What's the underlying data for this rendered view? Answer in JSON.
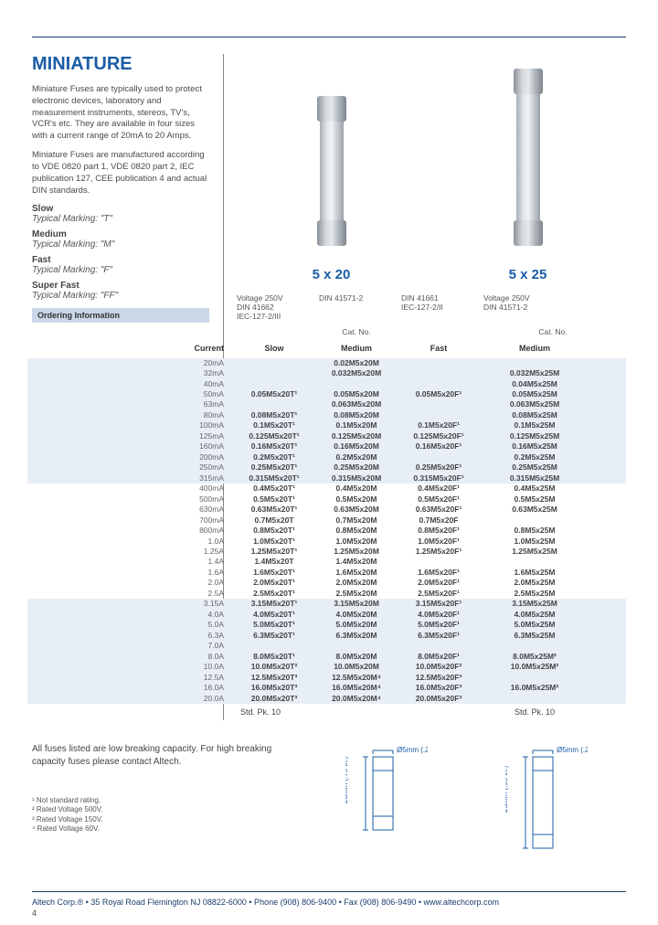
{
  "title": "MINIATURE",
  "intro1": "Miniature Fuses are typically used to protect electronic devices, laboratory and measurement instruments, stereos, TV's, VCR's etc. They are available in four sizes with a current range of 20mA to 20 Amps.",
  "intro2": "Miniature Fuses are manufactured according to VDE 0820 part 1, VDE 0820 part 2, IEC publication 127, CEE publication 4 and actual DIN standards.",
  "speeds": [
    {
      "name": "Slow",
      "mark": "Typical Marking: \"T\""
    },
    {
      "name": "Medium",
      "mark": "Typical Marking: \"M\""
    },
    {
      "name": "Fast",
      "mark": "Typical Marking: \"F\""
    },
    {
      "name": "Super Fast",
      "mark": "Typical Marking: \"FF\""
    }
  ],
  "ordering_label": "Ordering Information",
  "img_caps": [
    "5 x 20",
    "5 x 25"
  ],
  "fuse_colors": {
    "body": "#cdd2d6",
    "body_shadow": "#a8afb6",
    "cap": "#b5bcc3",
    "cap_dark": "#8a9199"
  },
  "header5x20": {
    "slow": "Voltage 250V\nDIN 41662\nIEC-127-2/III",
    "medium": "DIN 41571-2",
    "fast": "DIN 41661\nIEC-127-2/II",
    "catno": "Cat. No."
  },
  "header5x25": {
    "medium": "Voltage 250V\nDIN 41571-2",
    "catno": "Cat. No."
  },
  "speed_labels": {
    "current": "Current",
    "slow": "Slow",
    "medium": "Medium",
    "fast": "Fast",
    "medium2": "Medium"
  },
  "blocks": [
    {
      "band": true,
      "rows": [
        {
          "cur": "20mA",
          "s": "",
          "m": "0.02M5x20M",
          "f": "",
          "m2": ""
        },
        {
          "cur": "32mA",
          "s": "",
          "m": "0.032M5x20M",
          "f": "",
          "m2": "0.032M5x25M"
        },
        {
          "cur": "40mA",
          "s": "",
          "m": "",
          "f": "",
          "m2": "0.04M5x25M"
        },
        {
          "cur": "50mA",
          "s": "0.05M5x20T¹",
          "m": "0.05M5x20M",
          "f": "0.05M5x20F¹",
          "m2": "0.05M5x25M"
        },
        {
          "cur": "63mA",
          "s": "",
          "m": "0.063M5x20M",
          "f": "",
          "m2": "0.063M5x25M"
        },
        {
          "cur": "80mA",
          "s": "0.08M5x20T¹",
          "m": "0.08M5x20M",
          "f": "",
          "m2": "0.08M5x25M"
        },
        {
          "cur": "100mA",
          "s": "0.1M5x20T¹",
          "m": "0.1M5x20M",
          "f": "0.1M5x20F¹",
          "m2": "0.1M5x25M"
        },
        {
          "cur": "125mA",
          "s": "0.125M5x20T¹",
          "m": "0.125M5x20M",
          "f": "0.125M5x20F¹",
          "m2": "0.125M5x25M"
        },
        {
          "cur": "160mA",
          "s": "0.16M5x20T¹",
          "m": "0.16M5x20M",
          "f": "0.16M5x20F¹",
          "m2": "0.16M5x25M"
        },
        {
          "cur": "200mA",
          "s": "0.2M5x20T¹",
          "m": "0.2M5x20M",
          "f": "",
          "m2": "0.2M5x25M"
        },
        {
          "cur": "250mA",
          "s": "0.25M5x20T¹",
          "m": "0.25M5x20M",
          "f": "0.25M5x20F¹",
          "m2": "0.25M5x25M"
        },
        {
          "cur": "315mA",
          "s": "0.315M5x20T¹",
          "m": "0.315M5x20M",
          "f": "0.315M5x20F¹",
          "m2": "0.315M5x25M"
        }
      ]
    },
    {
      "band": false,
      "rows": [
        {
          "cur": "400mA",
          "s": "0.4M5x20T¹",
          "m": "0.4M5x20M",
          "f": "0.4M5x20F¹",
          "m2": "0.4M5x25M"
        },
        {
          "cur": "500mA",
          "s": "0.5M5x20T¹",
          "m": "0.5M5x20M",
          "f": "0.5M5x20F¹",
          "m2": "0.5M5x25M"
        },
        {
          "cur": "630mA",
          "s": "0.63M5x20T¹",
          "m": "0.63M5x20M",
          "f": "0.63M5x20F¹",
          "m2": "0.63M5x25M"
        },
        {
          "cur": "700mA",
          "s": "0.7M5x20T",
          "m": "0.7M5x20M",
          "f": "0.7M5x20F",
          "m2": ""
        },
        {
          "cur": "800mA",
          "s": "0.8M5x20T¹",
          "m": "0.8M5x20M",
          "f": "0.8M5x20F¹",
          "m2": "0.8M5x25M"
        },
        {
          "cur": "1.0A",
          "s": "1.0M5x20T¹",
          "m": "1.0M5x20M",
          "f": "1.0M5x20F¹",
          "m2": "1.0M5x25M"
        },
        {
          "cur": "1.25A",
          "s": "1.25M5x20T¹",
          "m": "1.25M5x20M",
          "f": "1.25M5x20F¹",
          "m2": "1.25M5x25M"
        },
        {
          "cur": "1.4A",
          "s": "1.4M5x20T",
          "m": "1.4M5x20M",
          "f": "",
          "m2": ""
        },
        {
          "cur": "1.6A",
          "s": "1.6M5x20T¹",
          "m": "1.6M5x20M",
          "f": "1.6M5x20F¹",
          "m2": "1.6M5x25M"
        },
        {
          "cur": "2.0A",
          "s": "2.0M5x20T¹",
          "m": "2.0M5x20M",
          "f": "2.0M5x20F¹",
          "m2": "2.0M5x25M"
        },
        {
          "cur": "2.5A",
          "s": "2.5M5x20T¹",
          "m": "2.5M5x20M",
          "f": "2.5M5x20F¹",
          "m2": "2.5M5x25M"
        }
      ]
    },
    {
      "band": true,
      "rows": [
        {
          "cur": "3.15A",
          "s": "3.15M5x20T¹",
          "m": "3.15M5x20M",
          "f": "3.15M5x20F¹",
          "m2": "3.15M5x25M"
        },
        {
          "cur": "4.0A",
          "s": "4.0M5x20T¹",
          "m": "4.0M5x20M",
          "f": "4.0M5x20F¹",
          "m2": "4.0M5x25M"
        },
        {
          "cur": "5.0A",
          "s": "5.0M5x20T¹",
          "m": "5.0M5x20M",
          "f": "5.0M5x20F¹",
          "m2": "5.0M5x25M"
        },
        {
          "cur": "6.3A",
          "s": "6.3M5x20T¹",
          "m": "6.3M5x20M",
          "f": "6.3M5x20F¹",
          "m2": "6.3M5x25M"
        },
        {
          "cur": "7.0A",
          "s": "",
          "m": "",
          "f": "",
          "m2": ""
        },
        {
          "cur": "8.0A",
          "s": "8.0M5x20T¹",
          "m": "8.0M5x20M",
          "f": "8.0M5x20F¹",
          "m2": "8.0M5x25M²"
        },
        {
          "cur": "10.0A",
          "s": "10.0M5x20T²",
          "m": "10.0M5x20M",
          "f": "10.0M5x20F²",
          "m2": "10.0M5x25M²"
        },
        {
          "cur": "12.5A",
          "s": "12.5M5x20T³",
          "m": "12.5M5x20M⁴",
          "f": "12.5M5x20F³",
          "m2": ""
        },
        {
          "cur": "16.0A",
          "s": "16.0M5x20T³",
          "m": "16.0M5x20M⁴",
          "f": "16.0M5x20F³",
          "m2": "16.0M5x25M²"
        },
        {
          "cur": "20.0A",
          "s": "20.0M5x20T³",
          "m": "20.0M5x20M⁴",
          "f": "20.0M5x20F³",
          "m2": ""
        }
      ]
    }
  ],
  "stdpk": "Std. Pk. 10",
  "bottom_note": "All fuses listed are low breaking capacity. For high breaking capacity fuses please contact Altech.",
  "footnotes": [
    "¹ Not standard rating.",
    "² Rated Voltage 500V.",
    "³ Rated Voltage 150V.",
    "⁴ Rated Voltage 60V."
  ],
  "dims": {
    "d1": {
      "w": "Ø5mm\n(.2 in.)",
      "h": "20mm\n(.79 in.)"
    },
    "d2": {
      "w": "Ø5mm\n(.2 in.)",
      "h": "25mm\n(.99 in.)"
    }
  },
  "footer": "Altech Corp.® • 35 Royal Road Flemington  NJ 08822-6000 • Phone (908) 806-9400 • Fax (908) 806-9490 • www.altechcorp.com",
  "pagenum": "4"
}
